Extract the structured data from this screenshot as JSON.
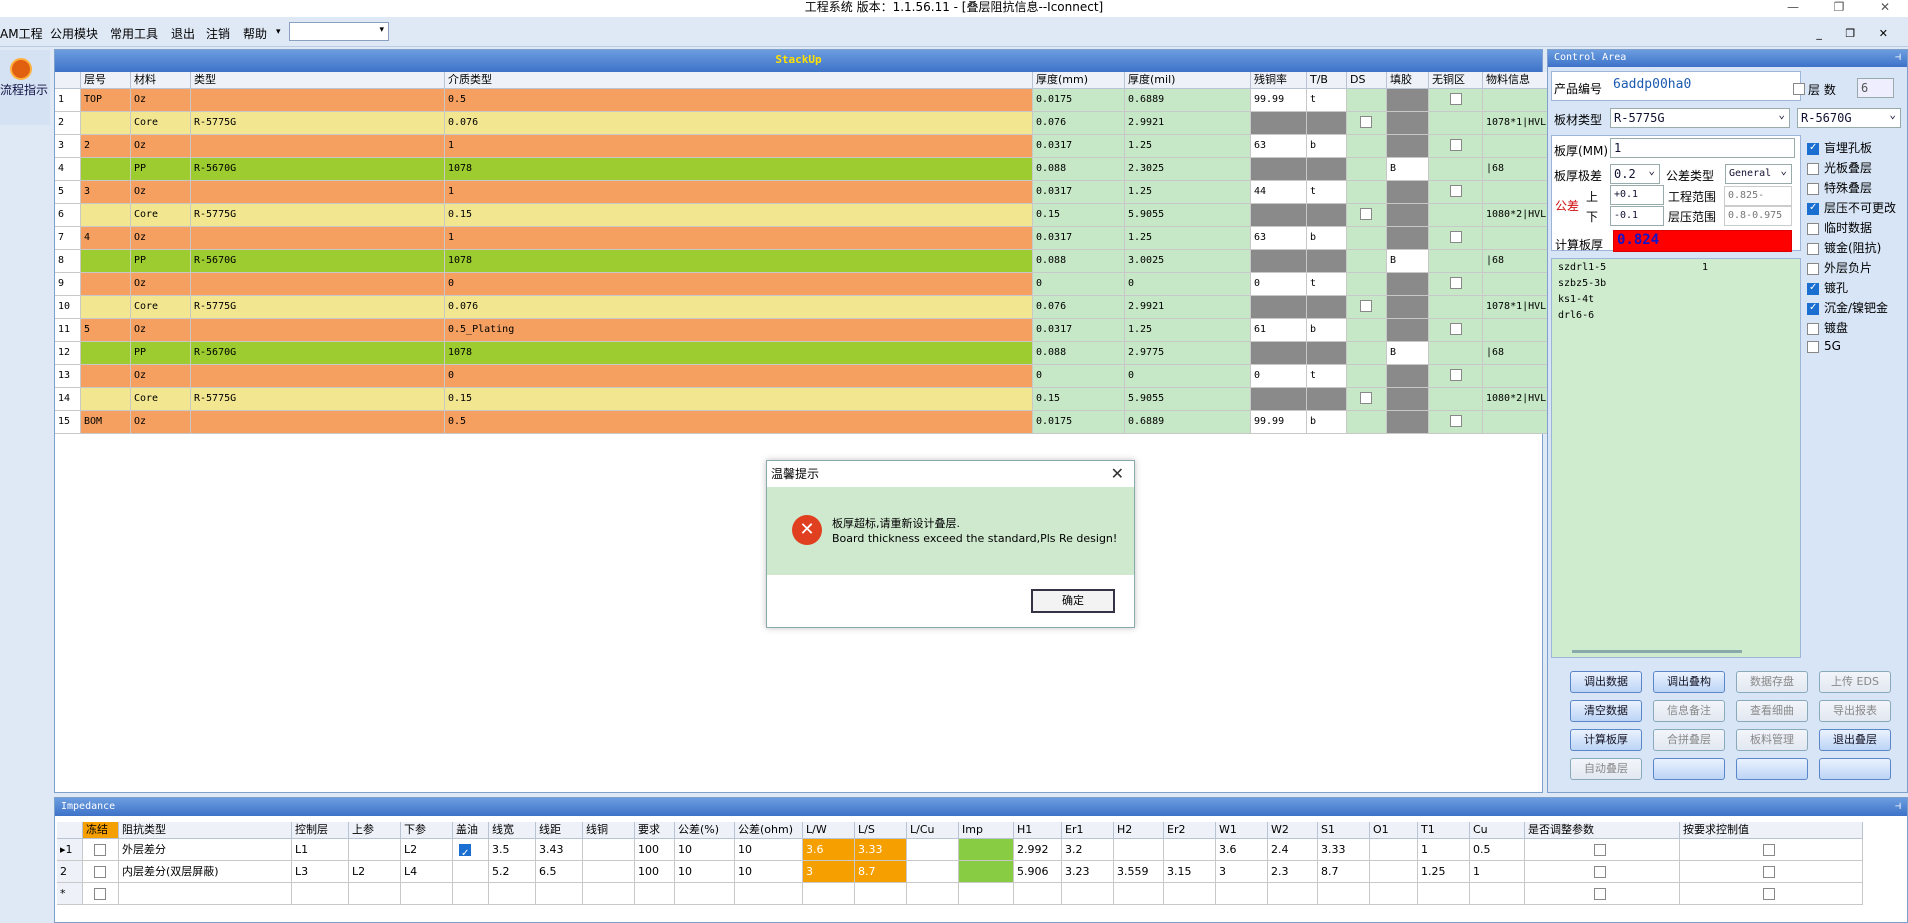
{
  "window": {
    "title": "工程系统  版本：1.1.56.11 - [叠层阻抗信息--Iconnect]",
    "controls": [
      "—",
      "❐",
      "✕"
    ]
  },
  "menu": {
    "items": [
      "AM工程",
      "公用模块",
      "常用工具",
      "退出",
      "注销",
      "帮助"
    ],
    "dropdown_arrow": "▾",
    "mdi": "_ ❐ ✕"
  },
  "leftnav": {
    "label": "流程指示"
  },
  "stackup": {
    "title": "StackUp",
    "headers": [
      "层号",
      "材料",
      "类型",
      "介质类型",
      "厚度(mm)",
      "厚度(mil)",
      "残铜率",
      "T/B",
      "DS",
      "填胶",
      "无铜区",
      "物料信息"
    ],
    "rows": [
      {
        "n": "1",
        "layer": "TOP",
        "mat": "Oz",
        "type": "",
        "dielectric": "0.5",
        "mm": "0.0175",
        "mil": "0.6889",
        "res": "99.99",
        "tb": "t",
        "ds": false,
        "fill": "",
        "nocu": true,
        "info": "",
        "kind": "cu"
      },
      {
        "n": "2",
        "layer": "",
        "mat": "Core",
        "type": "R-5775G",
        "dielectric": "0.076",
        "mm": "0.076",
        "mil": "2.9921",
        "res": "",
        "tb": "",
        "ds": true,
        "fill": "",
        "nocu": false,
        "info": "1078*1|HVLP",
        "kind": "core"
      },
      {
        "n": "3",
        "layer": "2",
        "mat": "Oz",
        "type": "",
        "dielectric": "1",
        "mm": "0.0317",
        "mil": "1.25",
        "res": "63",
        "tb": "b",
        "ds": false,
        "fill": "",
        "nocu": true,
        "info": "",
        "kind": "cu"
      },
      {
        "n": "4",
        "layer": "",
        "mat": "PP",
        "type": "R-5670G",
        "dielectric": "1078",
        "mm": "0.088",
        "mil": "2.3025",
        "res": "",
        "tb": "",
        "ds": false,
        "fill": "B",
        "nocu": false,
        "info": "|68",
        "kind": "pp"
      },
      {
        "n": "5",
        "layer": "3",
        "mat": "Oz",
        "type": "",
        "dielectric": "1",
        "mm": "0.0317",
        "mil": "1.25",
        "res": "44",
        "tb": "t",
        "ds": false,
        "fill": "",
        "nocu": true,
        "info": "",
        "kind": "cu"
      },
      {
        "n": "6",
        "layer": "",
        "mat": "Core",
        "type": "R-5775G",
        "dielectric": "0.15",
        "mm": "0.15",
        "mil": "5.9055",
        "res": "",
        "tb": "",
        "ds": true,
        "fill": "",
        "nocu": false,
        "info": "1080*2|HVLP",
        "kind": "core"
      },
      {
        "n": "7",
        "layer": "4",
        "mat": "Oz",
        "type": "",
        "dielectric": "1",
        "mm": "0.0317",
        "mil": "1.25",
        "res": "63",
        "tb": "b",
        "ds": false,
        "fill": "",
        "nocu": true,
        "info": "",
        "kind": "cu"
      },
      {
        "n": "8",
        "layer": "",
        "mat": "PP",
        "type": "R-5670G",
        "dielectric": "1078",
        "mm": "0.088",
        "mil": "3.0025",
        "res": "",
        "tb": "",
        "ds": false,
        "fill": "B",
        "nocu": false,
        "info": "|68",
        "kind": "pp"
      },
      {
        "n": "9",
        "layer": "",
        "mat": "Oz",
        "type": "",
        "dielectric": "0",
        "mm": "0",
        "mil": "0",
        "res": "0",
        "tb": "t",
        "ds": false,
        "fill": "",
        "nocu": true,
        "info": "",
        "kind": "cu"
      },
      {
        "n": "10",
        "layer": "",
        "mat": "Core",
        "type": "R-5775G",
        "dielectric": "0.076",
        "mm": "0.076",
        "mil": "2.9921",
        "res": "",
        "tb": "",
        "ds": true,
        "fill": "",
        "nocu": false,
        "info": "1078*1|HVLP",
        "kind": "core"
      },
      {
        "n": "11",
        "layer": "5",
        "mat": "Oz",
        "type": "",
        "dielectric": "0.5_Plating",
        "mm": "0.0317",
        "mil": "1.25",
        "res": "61",
        "tb": "b",
        "ds": false,
        "fill": "",
        "nocu": true,
        "info": "",
        "kind": "cu"
      },
      {
        "n": "12",
        "layer": "",
        "mat": "PP",
        "type": "R-5670G",
        "dielectric": "1078",
        "mm": "0.088",
        "mil": "2.9775",
        "res": "",
        "tb": "",
        "ds": false,
        "fill": "B",
        "nocu": false,
        "info": "|68",
        "kind": "pp"
      },
      {
        "n": "13",
        "layer": "",
        "mat": "Oz",
        "type": "",
        "dielectric": "0",
        "mm": "0",
        "mil": "0",
        "res": "0",
        "tb": "t",
        "ds": false,
        "fill": "",
        "nocu": true,
        "info": "",
        "kind": "cu"
      },
      {
        "n": "14",
        "layer": "",
        "mat": "Core",
        "type": "R-5775G",
        "dielectric": "0.15",
        "mm": "0.15",
        "mil": "5.9055",
        "res": "",
        "tb": "",
        "ds": true,
        "fill": "",
        "nocu": false,
        "info": "1080*2|HVLP",
        "kind": "core"
      },
      {
        "n": "15",
        "layer": "BOM",
        "mat": "Oz",
        "type": "",
        "dielectric": "0.5",
        "mm": "0.0175",
        "mil": "0.6889",
        "res": "99.99",
        "tb": "b",
        "ds": false,
        "fill": "",
        "nocu": true,
        "info": "",
        "kind": "cu"
      }
    ]
  },
  "dialog": {
    "title": "温馨提示",
    "close": "✕",
    "icon": "✕",
    "msg_cn": "板厚超标,请重新设计叠层.",
    "msg_en": "Board thickness exceed the standard,Pls Re design!",
    "ok": "确定"
  },
  "control": {
    "title": "Control Area",
    "pin": "⊣",
    "product_label": "产品编号",
    "product_value": "6addp00ha0",
    "layers_label": "层  数",
    "layers_value": "6",
    "board_type_label": "板材类型",
    "board_type_1": "R-5775G",
    "board_type_2": "R-5670G",
    "thick_label": "板厚(MM)",
    "thick_value": "1",
    "tol_label": "板厚极差",
    "tol_value": "0.2",
    "tol_type_label": "公差类型",
    "tol_type_value": "General",
    "gongcha": "公差",
    "up": "上",
    "down": "下",
    "up_value": "+0.1",
    "down_value": "-0.1",
    "eng_range_label": "工程范围",
    "eng_range_value": "0.825-0.875",
    "press_range_label": "层压范围",
    "press_range_value": "0.8-0.975",
    "calc_label": "计算板厚",
    "calc_value": "0.824",
    "list": [
      {
        "name": "szdrl1-5",
        "v": "1"
      },
      {
        "name": "szbz5-3b",
        "v": ""
      },
      {
        "name": "ks1-4t",
        "v": ""
      },
      {
        "name": "drl6-6",
        "v": ""
      }
    ],
    "options": [
      {
        "label": "盲埋孔板",
        "on": true
      },
      {
        "label": "光板叠层",
        "on": false
      },
      {
        "label": "特殊叠层",
        "on": false
      },
      {
        "label": "层压不可更改",
        "on": true
      },
      {
        "label": "临时数据",
        "on": false
      },
      {
        "label": "镀金(阻抗)",
        "on": false
      },
      {
        "label": "外层负片",
        "on": false
      },
      {
        "label": "镀孔",
        "on": true
      },
      {
        "label": "沉金/镍钯金",
        "on": true
      },
      {
        "label": "镀盘",
        "on": false
      },
      {
        "label": "5G",
        "on": false
      }
    ],
    "buttons": [
      {
        "label": "调出数据",
        "s": "act"
      },
      {
        "label": "调出叠构",
        "s": "act"
      },
      {
        "label": "数据存盘",
        "s": "dis"
      },
      {
        "label": "上传 EDS",
        "s": "dis"
      },
      {
        "label": "清空数据",
        "s": "act"
      },
      {
        "label": "信息备注",
        "s": "dis"
      },
      {
        "label": "查看细曲",
        "s": "dis"
      },
      {
        "label": "导出报表",
        "s": "dis"
      },
      {
        "label": "计算板厚",
        "s": "act"
      },
      {
        "label": "合拼叠层",
        "s": "dis"
      },
      {
        "label": "板料管理",
        "s": "dis"
      },
      {
        "label": "退出叠层",
        "s": "act"
      },
      {
        "label": "自动叠层",
        "s": "dis"
      },
      {
        "label": "",
        "s": "act"
      },
      {
        "label": "",
        "s": "act"
      },
      {
        "label": "",
        "s": "act"
      }
    ]
  },
  "impedance": {
    "title": "Impedance",
    "pin": "⊣",
    "headers": [
      "冻结",
      "阻抗类型",
      "控制层",
      "上参",
      "下参",
      "盖油",
      "线宽",
      "线距",
      "线铜",
      "要求",
      "公差(%)",
      "公差(ohm)",
      "L/W",
      "L/S",
      "L/Cu",
      "Imp",
      "H1",
      "Er1",
      "H2",
      "Er2",
      "W1",
      "W2",
      "S1",
      "O1",
      "T1",
      "Cu",
      "是否调整参数",
      "按要求控制值"
    ],
    "rows": [
      {
        "mark": "▸1",
        "cells": [
          "",
          "外层差分",
          "L1",
          "",
          "L2",
          "✓",
          "3.5",
          "3.43",
          "",
          "100",
          "10",
          "10",
          "3.6",
          "3.33",
          "",
          "",
          "2.992",
          "3.2",
          "",
          "",
          "3.6",
          "2.4",
          "3.33",
          "",
          "1",
          "0.5",
          "",
          ""
        ]
      },
      {
        "mark": "2",
        "cells": [
          "",
          "内层差分(双层屏蔽)",
          "L3",
          "L2",
          "L4",
          "",
          "5.2",
          "6.5",
          "",
          "100",
          "10",
          "10",
          "3",
          "8.7",
          "",
          "",
          "5.906",
          "3.23",
          "3.559",
          "3.15",
          "3",
          "2.3",
          "8.7",
          "",
          "1.25",
          "1",
          "",
          ""
        ]
      },
      {
        "mark": "*",
        "cells": [
          "",
          "",
          "",
          "",
          "",
          "",
          "",
          "",
          "",
          "",
          "",
          "",
          "",
          "",
          "",
          "",
          "",
          "",
          "",
          "",
          "",
          "",
          "",
          "",
          "",
          "",
          "",
          ""
        ]
      }
    ]
  }
}
